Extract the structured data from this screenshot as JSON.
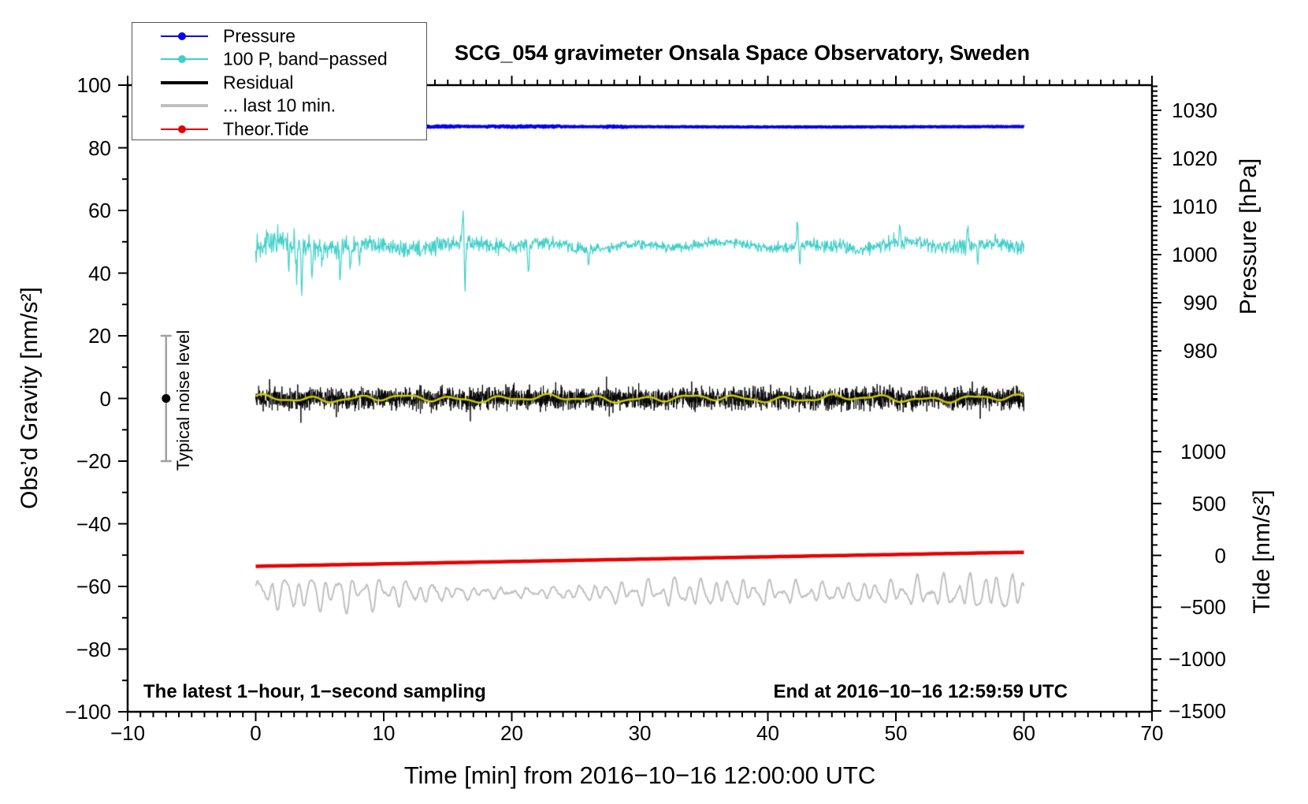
{
  "chart_data": {
    "type": "line",
    "title": "SCG_054 gravimeter Onsala Space Observatory, Sweden",
    "x_axis": {
      "label": "Time [min] from 2016−10−16 12:00:00 UTC",
      "range": [
        -10,
        70
      ],
      "data_range": [
        0,
        60
      ],
      "major_tick_values": [
        -10,
        0,
        10,
        20,
        30,
        40,
        50,
        60,
        70
      ],
      "major_tick_labels": [
        "−10",
        "0",
        "10",
        "20",
        "30",
        "40",
        "50",
        "60",
        "70"
      ],
      "minor_tick_step": 1
    },
    "y_left_axis": {
      "label": "Obs’d Gravity [nm/s²]",
      "range": [
        -100,
        100
      ],
      "major_tick_values": [
        100,
        80,
        60,
        40,
        20,
        0,
        -20,
        -40,
        -60,
        -80,
        -100
      ],
      "major_tick_labels": [
        "100",
        "80",
        "60",
        "40",
        "20",
        "0",
        "−20",
        "−40",
        "−60",
        "−80",
        "−100"
      ],
      "minor_tick_step": 10
    },
    "y_right_pressure_axis": {
      "label": "Pressure [hPa]",
      "visible_range": [
        970,
        1035
      ],
      "major_tick_values": [
        1030,
        1020,
        1010,
        1000,
        990,
        980
      ],
      "major_tick_labels": [
        "1030",
        "1020",
        "1010",
        "1000",
        "990",
        "980"
      ],
      "minor_tick_step": 1
    },
    "y_right_tide_axis": {
      "label": "Tide [nm/s²]",
      "visible_range": [
        -1500,
        1500
      ],
      "major_tick_values": [
        1000,
        500,
        0,
        -500,
        -1000,
        -1500
      ],
      "major_tick_labels": [
        "1000",
        "500",
        "0",
        "−500",
        "−1000",
        "−1500"
      ],
      "minor_tick_step": 100
    },
    "series": [
      {
        "name": "Pressure",
        "axis": "pressure",
        "color": "#0000EE",
        "line_width": 3.5,
        "mean_hPa": 1026.6,
        "noise_hPa": 0.18
      },
      {
        "name": "100 P, band−passed",
        "axis": "gravity",
        "color": "#3FCFC9",
        "line_width": 1.2,
        "center": 48.8,
        "typical_amplitude": 2.3,
        "spikes": [
          [
            2.6,
            -8
          ],
          [
            3.2,
            -13
          ],
          [
            3.6,
            -15.5
          ],
          [
            4.4,
            -9
          ],
          [
            5.2,
            -7
          ],
          [
            6.6,
            -10
          ],
          [
            7.4,
            -8.5
          ],
          [
            8.1,
            -7
          ],
          [
            16.2,
            11
          ],
          [
            16.35,
            -13
          ],
          [
            21.3,
            -9
          ],
          [
            26.0,
            -6
          ],
          [
            42.3,
            7
          ],
          [
            42.5,
            -6
          ],
          [
            50.3,
            5
          ],
          [
            55.6,
            6
          ],
          [
            56.4,
            -7
          ]
        ]
      },
      {
        "name": "Residual",
        "axis": "gravity",
        "color": "#000000",
        "line_width": 1,
        "center": 0,
        "sigma": 3.2,
        "extreme": 17
      },
      {
        "name": "Residual smoothed (unlabeled yellow overlay)",
        "axis": "gravity",
        "color": "#CCCC00",
        "line_width": 2.5,
        "center": 0,
        "amplitude": 0.9
      },
      {
        "name": "... last 10 min.",
        "axis": "gravity",
        "color": "#BFBFBF",
        "line_width": 2,
        "center": -62,
        "amplitude_min": 2,
        "amplitude_max": 5.5,
        "dominant_period_min": 1.05
      },
      {
        "name": "Theor.Tide",
        "axis": "tide",
        "color": "#E60000",
        "line_width": 4.5,
        "start_value": -105,
        "end_value": 24
      }
    ],
    "legend_position": "top-left",
    "grid": false
  },
  "legend": {
    "items": [
      {
        "label": "Pressure",
        "color": "#0000EE",
        "marker": true,
        "sample_width": 2
      },
      {
        "label": "100 P, band−passed",
        "color": "#3FCFC9",
        "marker": true,
        "sample_width": 2
      },
      {
        "label": "Residual",
        "color": "#000000",
        "marker": false,
        "sample_width": 4
      },
      {
        "label": "... last 10 min.",
        "color": "#BFBFBF",
        "marker": false,
        "sample_width": 4
      },
      {
        "label": "Theor.Tide",
        "color": "#E60000",
        "marker": true,
        "sample_width": 2
      }
    ]
  },
  "annotations": {
    "sampling_note": "The latest 1−hour, 1−second sampling",
    "end_note": "End at 2016−10−16 12:59:59 UTC",
    "noise_bar": {
      "label": "Typical noise level",
      "x_min": -7,
      "gravity_range": [
        -20,
        20
      ],
      "dot_value": 0,
      "bar_color": "#A0A0A0",
      "dot_color": "#000000"
    }
  },
  "colors": {
    "frame": "#000000",
    "background": "#FFFFFF"
  }
}
